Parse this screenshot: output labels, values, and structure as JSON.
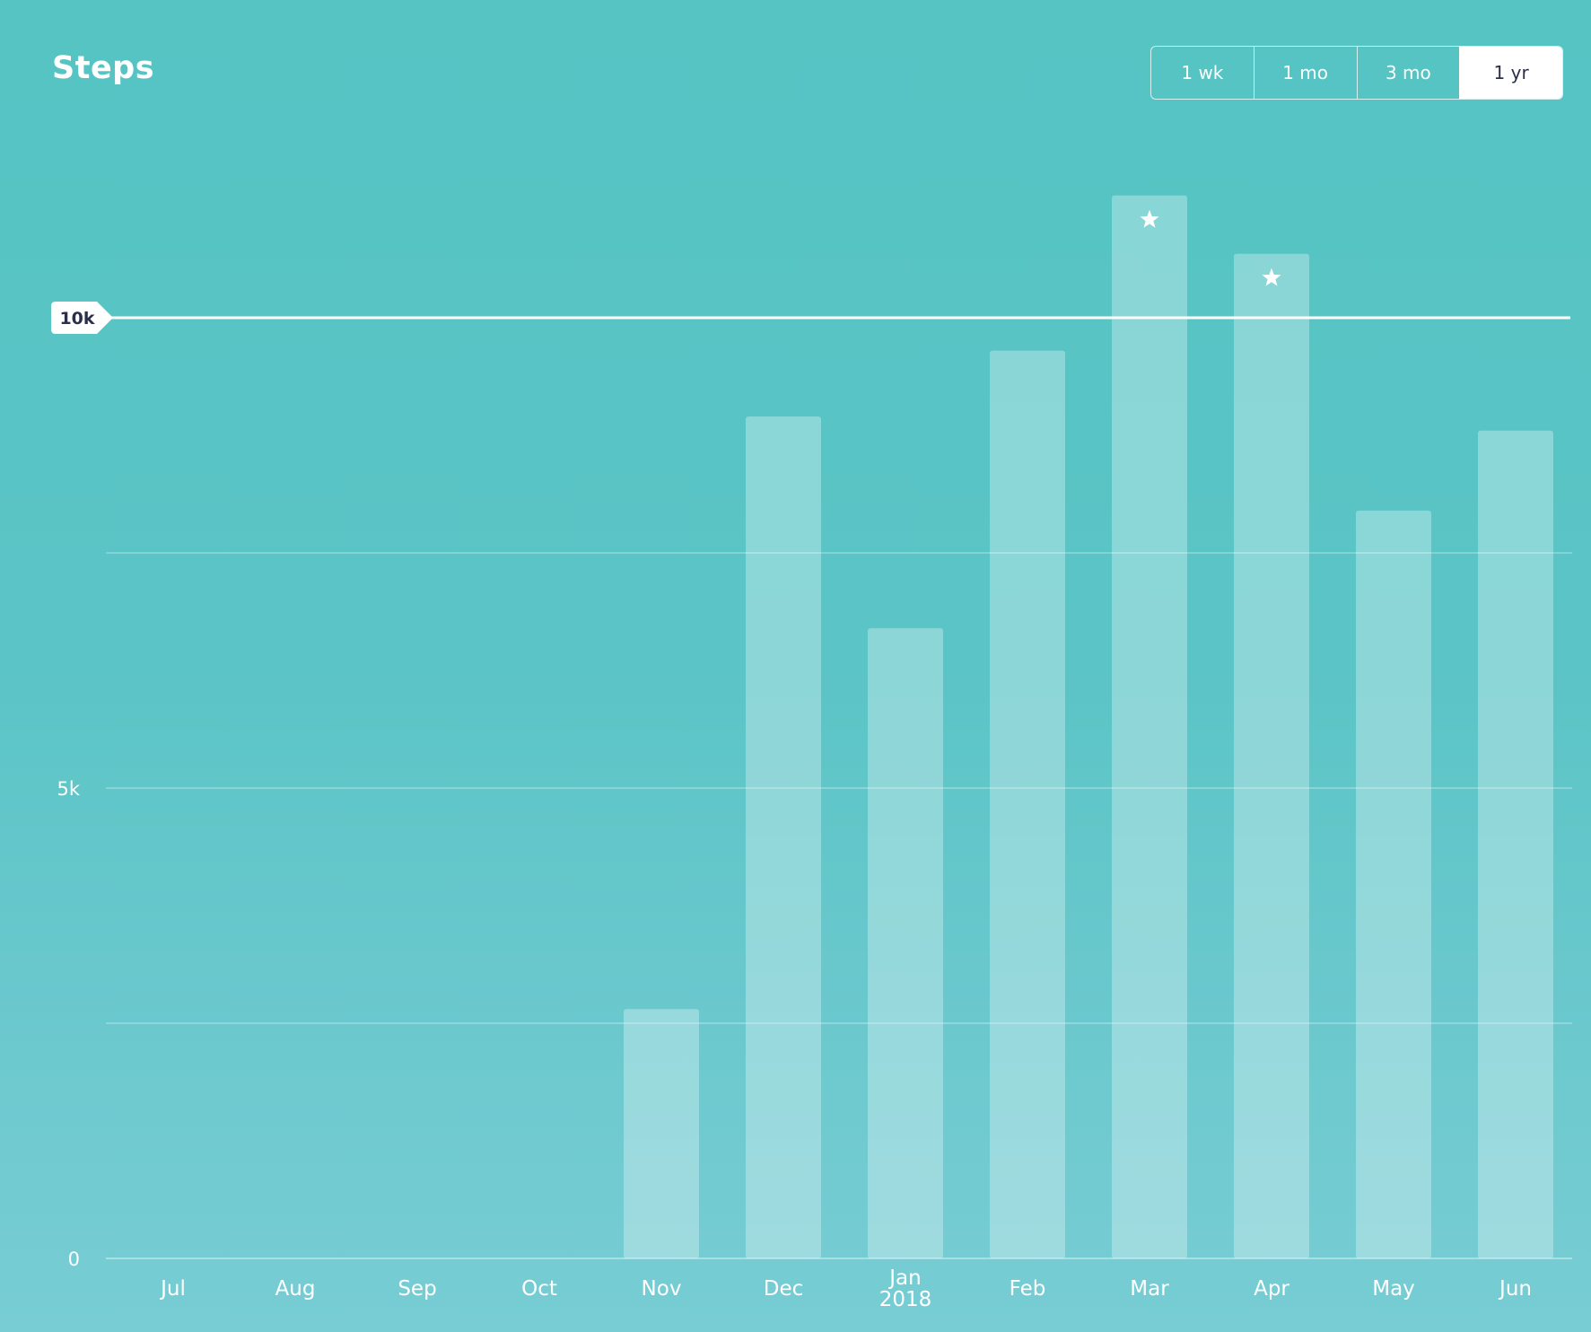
{
  "header": {
    "title": "Steps"
  },
  "range_buttons": [
    "1 wk",
    "1 mo",
    "3 mo",
    "1 yr"
  ],
  "active_range": "1 yr",
  "colors": {
    "bar": "#ffffff",
    "goal_line": "#ffffff",
    "label_dark": "#2b2f4a"
  },
  "chart_data": {
    "type": "bar",
    "title": "Steps",
    "categories": [
      "Jul",
      "Aug",
      "Sep",
      "Oct",
      "Nov",
      "Dec",
      "Jan\n2018",
      "Feb",
      "Mar",
      "Apr",
      "May",
      "Jun"
    ],
    "values": [
      0,
      0,
      0,
      0,
      2650,
      8950,
      6700,
      9650,
      11300,
      10680,
      7950,
      8800
    ],
    "goal": {
      "value": 10000,
      "label": "10k"
    },
    "goal_met_markers": [
      "Mar",
      "Apr"
    ],
    "yticks": [
      {
        "value": 0,
        "label": "0"
      },
      {
        "value": 5000,
        "label": "5k"
      }
    ],
    "gridlines": [
      2500,
      5000,
      7500
    ],
    "ylim": [
      0,
      12500
    ],
    "xlabel": "",
    "ylabel": "",
    "grid": true
  }
}
